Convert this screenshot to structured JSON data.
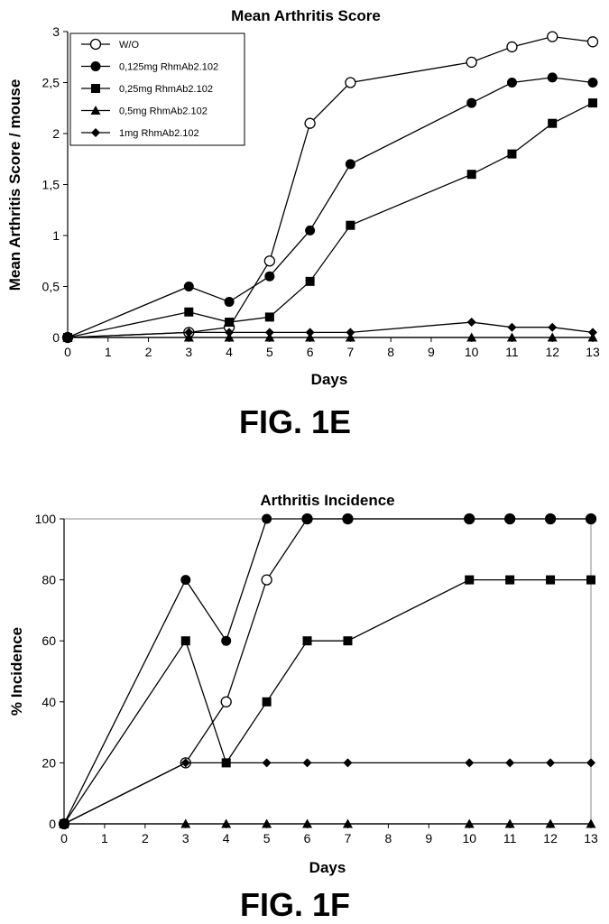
{
  "chart_data": [
    {
      "type": "line",
      "title": "Mean Arthritis Score",
      "figure_label": "FIG. 1E",
      "xlabel": "Days",
      "ylabel": "Mean Arthritis Score / mouse",
      "x_ticks": [
        0,
        1,
        2,
        3,
        4,
        5,
        6,
        7,
        8,
        9,
        10,
        11,
        12,
        13
      ],
      "y_ticks": [
        "0",
        "0,5",
        "1",
        "1,5",
        "2",
        "2,5",
        "3"
      ],
      "xlim": [
        0,
        13
      ],
      "ylim": [
        0,
        3
      ],
      "grid": false,
      "legend_position": "top-left",
      "series": [
        {
          "name": "W/O",
          "marker": "circle-open",
          "x": [
            0,
            3,
            4,
            5,
            6,
            7,
            10,
            11,
            12,
            13
          ],
          "y": [
            0,
            0.05,
            0.1,
            0.75,
            2.1,
            2.5,
            2.7,
            2.85,
            2.95,
            2.9
          ]
        },
        {
          "name": "0,125mg RhmAb2.102",
          "marker": "circle-filled",
          "x": [
            0,
            3,
            4,
            5,
            6,
            7,
            10,
            11,
            12,
            13
          ],
          "y": [
            0,
            0.5,
            0.35,
            0.6,
            1.05,
            1.7,
            2.3,
            2.5,
            2.55,
            2.5
          ]
        },
        {
          "name": "0,25mg RhmAb2.102",
          "marker": "square",
          "x": [
            0,
            3,
            4,
            5,
            6,
            7,
            10,
            11,
            12,
            13
          ],
          "y": [
            0,
            0.25,
            0.15,
            0.2,
            0.55,
            1.1,
            1.6,
            1.8,
            2.1,
            2.3
          ]
        },
        {
          "name": "0,5mg RhmAb2.102",
          "marker": "triangle",
          "x": [
            0,
            3,
            4,
            5,
            6,
            7,
            10,
            11,
            12,
            13
          ],
          "y": [
            0,
            0,
            0,
            0,
            0,
            0,
            0,
            0,
            0,
            0
          ]
        },
        {
          "name": "1mg RhmAb2.102",
          "marker": "diamond",
          "x": [
            0,
            3,
            4,
            5,
            6,
            7,
            10,
            11,
            12,
            13
          ],
          "y": [
            0,
            0.05,
            0.05,
            0.05,
            0.05,
            0.05,
            0.15,
            0.1,
            0.1,
            0.05
          ]
        }
      ]
    },
    {
      "type": "line",
      "title": "Arthritis Incidence",
      "figure_label": "FIG. 1F",
      "xlabel": "Days",
      "ylabel": "% Incidence",
      "x_ticks": [
        0,
        1,
        2,
        3,
        4,
        5,
        6,
        7,
        8,
        9,
        10,
        11,
        12,
        13
      ],
      "y_ticks": [
        "0",
        "20",
        "40",
        "60",
        "80",
        "100"
      ],
      "xlim": [
        0,
        13
      ],
      "ylim": [
        0,
        100
      ],
      "grid": false,
      "series": [
        {
          "marker": "circle-open",
          "x": [
            0,
            3,
            4,
            5,
            6,
            7,
            10,
            11,
            12,
            13
          ],
          "y": [
            0,
            20,
            40,
            80,
            100,
            100,
            100,
            100,
            100,
            100
          ]
        },
        {
          "marker": "circle-filled",
          "x": [
            0,
            3,
            4,
            5,
            6,
            7,
            10,
            11,
            12,
            13
          ],
          "y": [
            0,
            80,
            60,
            100,
            100,
            100,
            100,
            100,
            100,
            100
          ]
        },
        {
          "marker": "square",
          "x": [
            0,
            3,
            4,
            5,
            6,
            7,
            10,
            11,
            12,
            13
          ],
          "y": [
            0,
            60,
            20,
            40,
            60,
            60,
            80,
            80,
            80,
            80
          ]
        },
        {
          "marker": "triangle",
          "x": [
            0,
            3,
            4,
            5,
            6,
            7,
            10,
            11,
            12,
            13
          ],
          "y": [
            0,
            0,
            0,
            0,
            0,
            0,
            0,
            0,
            0,
            0
          ]
        },
        {
          "marker": "diamond",
          "x": [
            0,
            3,
            4,
            5,
            6,
            7,
            10,
            11,
            12,
            13
          ],
          "y": [
            0,
            20,
            20,
            20,
            20,
            20,
            20,
            20,
            20,
            20
          ]
        }
      ]
    }
  ]
}
